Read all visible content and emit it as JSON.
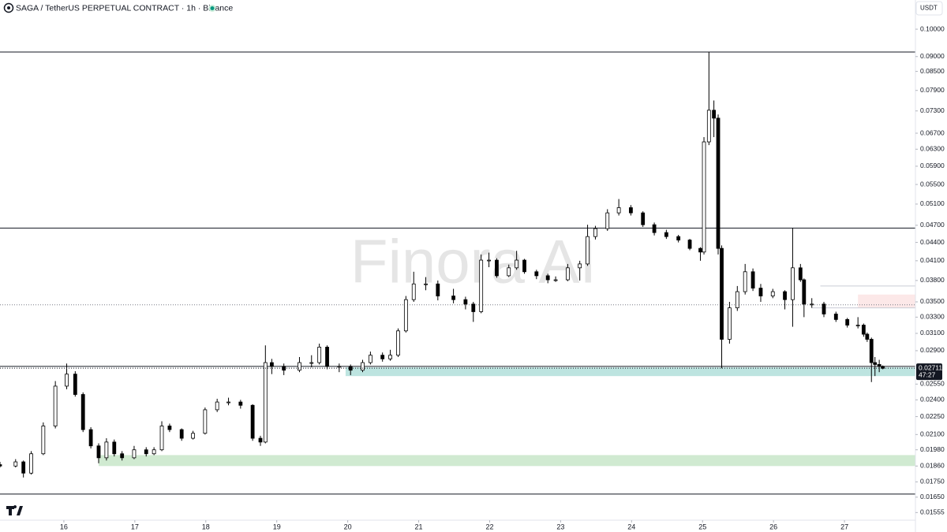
{
  "chart_data": {
    "type": "candlestick",
    "title": "SAGA / TetherUS PERPETUAL CONTRACT · 1h · Binance",
    "currency": "USDT",
    "watermark": "Finora AI",
    "log_scale": true,
    "up_color": "#ffffff",
    "down_color": "#000000",
    "outline_color": "#000000",
    "xlim": [
      15.1,
      28.0
    ],
    "xticks": [
      16,
      17,
      18,
      19,
      20,
      21,
      22,
      23,
      24,
      25,
      26,
      27
    ],
    "ylim": [
      0.0151,
      0.1119
    ],
    "yticks": [
      {
        "value": 0.1,
        "label": "0.10000"
      },
      {
        "value": 0.09,
        "label": "0.09000"
      },
      {
        "value": 0.085,
        "label": "0.08500"
      },
      {
        "value": 0.079,
        "label": "0.07900"
      },
      {
        "value": 0.073,
        "label": "0.07300"
      },
      {
        "value": 0.067,
        "label": "0.06700"
      },
      {
        "value": 0.063,
        "label": "0.06300"
      },
      {
        "value": 0.059,
        "label": "0.05900"
      },
      {
        "value": 0.055,
        "label": "0.05500"
      },
      {
        "value": 0.051,
        "label": "0.05100"
      },
      {
        "value": 0.047,
        "label": "0.04700"
      },
      {
        "value": 0.044,
        "label": "0.04400"
      },
      {
        "value": 0.041,
        "label": "0.04100"
      },
      {
        "value": 0.038,
        "label": "0.03800"
      },
      {
        "value": 0.035,
        "label": "0.03500"
      },
      {
        "value": 0.033,
        "label": "0.03300"
      },
      {
        "value": 0.031,
        "label": "0.03100"
      },
      {
        "value": 0.029,
        "label": "0.02900"
      },
      {
        "value": 0.0255,
        "label": "0.02550"
      },
      {
        "value": 0.024,
        "label": "0.02400"
      },
      {
        "value": 0.0225,
        "label": "0.02250"
      },
      {
        "value": 0.021,
        "label": "0.02100"
      },
      {
        "value": 0.0198,
        "label": "0.01980"
      },
      {
        "value": 0.0186,
        "label": "0.01860"
      },
      {
        "value": 0.0175,
        "label": "0.01750"
      },
      {
        "value": 0.0165,
        "label": "0.01650"
      },
      {
        "value": 0.01555,
        "label": "0.01555"
      }
    ],
    "last_price": {
      "value": 0.02711,
      "label": "0.02711"
    },
    "countdown": "47:27",
    "levels": [
      {
        "value": 0.0916,
        "style": "solid"
      },
      {
        "value": 0.0465,
        "style": "solid"
      },
      {
        "value": 0.0273,
        "style": "solid"
      },
      {
        "value": 0.0167,
        "style": "solid"
      },
      {
        "value": 0.0346,
        "style": "dotted"
      },
      {
        "value": 0.0372,
        "style": "light",
        "from": 26.66
      },
      {
        "value": 0.0342,
        "style": "light",
        "from": 26.54
      }
    ],
    "zones": [
      {
        "from": 19.97,
        "low": 0.0263,
        "high": 0.0272,
        "color": "#b2dfdb"
      },
      {
        "from": 16.49,
        "low": 0.0186,
        "high": 0.0194,
        "color": "#c8e6c9"
      },
      {
        "from": 27.19,
        "low": 0.0342,
        "high": 0.036,
        "color": "#fce4e4"
      }
    ],
    "x": [
      15.1,
      15.32,
      15.43,
      15.54,
      15.71,
      15.88,
      16.04,
      16.16,
      16.27,
      16.38,
      16.49,
      16.6,
      16.71,
      16.82,
      16.99,
      17.16,
      17.27,
      17.38,
      17.49,
      17.66,
      17.82,
      17.99,
      18.16,
      18.32,
      18.49,
      18.66,
      18.77,
      18.84,
      18.93,
      19.1,
      19.32,
      19.49,
      19.6,
      19.71,
      19.88,
      20.04,
      20.21,
      20.32,
      20.49,
      20.6,
      20.71,
      20.82,
      20.93,
      21.1,
      21.27,
      21.49,
      21.66,
      21.77,
      21.88,
      21.99,
      22.1,
      22.27,
      22.38,
      22.49,
      22.66,
      22.82,
      22.93,
      23.1,
      23.27,
      23.38,
      23.49,
      23.66,
      23.82,
      23.99,
      24.16,
      24.32,
      24.49,
      24.66,
      24.82,
      24.97,
      25.02,
      25.09,
      25.16,
      25.22,
      25.27,
      25.38,
      25.49,
      25.6,
      25.71,
      25.82,
      25.99,
      26.16,
      26.27,
      26.38,
      26.43,
      26.54,
      26.71,
      26.88,
      27.04,
      27.19,
      27.27,
      27.32,
      27.38,
      27.43,
      27.49,
      27.54
    ],
    "open": [
      0.0187,
      0.0186,
      0.0189,
      0.0181,
      0.0195,
      0.0217,
      0.0253,
      0.0265,
      0.0245,
      0.0214,
      0.0201,
      0.0192,
      0.0204,
      0.0195,
      0.0192,
      0.0198,
      0.0195,
      0.0198,
      0.0217,
      0.0214,
      0.0207,
      0.0211,
      0.0231,
      0.0238,
      0.0238,
      0.0235,
      0.0207,
      0.0204,
      0.0277,
      0.0273,
      0.0269,
      0.0277,
      0.0277,
      0.0294,
      0.0273,
      0.0273,
      0.0269,
      0.0277,
      0.0285,
      0.0281,
      0.0285,
      0.0313,
      0.0353,
      0.0375,
      0.0375,
      0.0358,
      0.0353,
      0.0347,
      0.0337,
      0.0411,
      0.0411,
      0.0387,
      0.0399,
      0.0411,
      0.0393,
      0.0387,
      0.0381,
      0.0381,
      0.0399,
      0.0405,
      0.045,
      0.0464,
      0.0493,
      0.0503,
      0.0493,
      0.0471,
      0.0457,
      0.045,
      0.0444,
      0.043,
      0.0424,
      0.0648,
      0.0732,
      0.071,
      0.043,
      0.0303,
      0.0342,
      0.0364,
      0.0393,
      0.0369,
      0.0358,
      0.0364,
      0.0353,
      0.0399,
      0.0381,
      0.0347,
      0.0347,
      0.0334,
      0.0327,
      0.032,
      0.032,
      0.0309,
      0.0303,
      0.0277,
      0.0275,
      0.0273
    ],
    "high": [
      0.0189,
      0.0191,
      0.019,
      0.0197,
      0.022,
      0.0258,
      0.0276,
      0.0268,
      0.0247,
      0.0216,
      0.0203,
      0.0207,
      0.0206,
      0.0197,
      0.0201,
      0.02,
      0.02,
      0.0221,
      0.0219,
      0.0215,
      0.0213,
      0.0233,
      0.0241,
      0.0242,
      0.024,
      0.0236,
      0.0209,
      0.0296,
      0.0281,
      0.0276,
      0.0283,
      0.0285,
      0.0298,
      0.0296,
      0.0276,
      0.0275,
      0.028,
      0.0289,
      0.0288,
      0.0291,
      0.0316,
      0.0358,
      0.0393,
      0.0385,
      0.038,
      0.0368,
      0.0357,
      0.035,
      0.042,
      0.0423,
      0.0414,
      0.0404,
      0.0426,
      0.0413,
      0.0396,
      0.039,
      0.0386,
      0.0405,
      0.041,
      0.0471,
      0.0469,
      0.05,
      0.052,
      0.0508,
      0.0496,
      0.0475,
      0.0462,
      0.0453,
      0.0446,
      0.0432,
      0.066,
      0.0916,
      0.076,
      0.072,
      0.0435,
      0.035,
      0.0372,
      0.0405,
      0.0398,
      0.0375,
      0.0368,
      0.0366,
      0.0465,
      0.0405,
      0.0383,
      0.0355,
      0.035,
      0.0337,
      0.0329,
      0.033,
      0.0322,
      0.0311,
      0.0305,
      0.0283,
      0.028,
      0.0274
    ],
    "low": [
      0.0185,
      0.0185,
      0.0178,
      0.018,
      0.0194,
      0.0215,
      0.025,
      0.0243,
      0.0212,
      0.0199,
      0.0188,
      0.019,
      0.0193,
      0.019,
      0.0191,
      0.0193,
      0.0194,
      0.0197,
      0.0212,
      0.0205,
      0.0206,
      0.021,
      0.0229,
      0.0235,
      0.0232,
      0.0205,
      0.0201,
      0.0203,
      0.0265,
      0.0264,
      0.0267,
      0.0272,
      0.0275,
      0.027,
      0.0267,
      0.0264,
      0.0267,
      0.0275,
      0.0278,
      0.0279,
      0.0283,
      0.0311,
      0.035,
      0.0366,
      0.0352,
      0.0348,
      0.034,
      0.0324,
      0.0335,
      0.04,
      0.0384,
      0.0385,
      0.0396,
      0.039,
      0.0382,
      0.0376,
      0.0378,
      0.0379,
      0.038,
      0.0402,
      0.0445,
      0.046,
      0.0488,
      0.0488,
      0.0467,
      0.0452,
      0.0446,
      0.044,
      0.0427,
      0.041,
      0.042,
      0.064,
      0.066,
      0.042,
      0.0271,
      0.0298,
      0.0338,
      0.036,
      0.0365,
      0.035,
      0.0355,
      0.034,
      0.0318,
      0.0378,
      0.033,
      0.0342,
      0.033,
      0.0324,
      0.0317,
      0.0316,
      0.0306,
      0.03,
      0.0257,
      0.0263,
      0.0267,
      0.027
    ],
    "close": [
      0.0186,
      0.0189,
      0.0181,
      0.0195,
      0.0217,
      0.0253,
      0.0265,
      0.0245,
      0.0214,
      0.0201,
      0.0192,
      0.0204,
      0.0195,
      0.0192,
      0.0198,
      0.0195,
      0.0198,
      0.0217,
      0.0214,
      0.0207,
      0.0211,
      0.0231,
      0.0238,
      0.0238,
      0.0235,
      0.0207,
      0.0204,
      0.0277,
      0.0273,
      0.0269,
      0.0277,
      0.0277,
      0.0294,
      0.0273,
      0.0273,
      0.0269,
      0.0277,
      0.0285,
      0.0281,
      0.0285,
      0.0313,
      0.0353,
      0.0375,
      0.0375,
      0.0358,
      0.0353,
      0.0347,
      0.0337,
      0.0411,
      0.0411,
      0.0387,
      0.0399,
      0.0411,
      0.0393,
      0.0387,
      0.0381,
      0.0381,
      0.0399,
      0.0405,
      0.045,
      0.0464,
      0.0493,
      0.0503,
      0.0493,
      0.0471,
      0.0457,
      0.045,
      0.0444,
      0.043,
      0.0424,
      0.0648,
      0.0732,
      0.071,
      0.043,
      0.0303,
      0.0342,
      0.0364,
      0.0393,
      0.0369,
      0.0358,
      0.0364,
      0.0353,
      0.0399,
      0.0381,
      0.0347,
      0.0347,
      0.0334,
      0.0327,
      0.032,
      0.032,
      0.0309,
      0.0303,
      0.0277,
      0.0275,
      0.0273,
      0.0271
    ]
  }
}
